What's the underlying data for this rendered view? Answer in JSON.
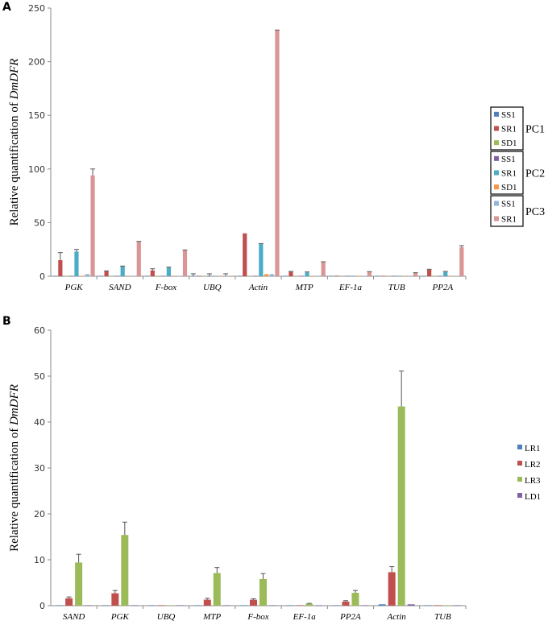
{
  "chart_data": [
    {
      "id": "A",
      "type": "bar",
      "panel_label": "A",
      "ylabel_prefix": "Relative quantification of ",
      "ylabel_gene": "DmDFR",
      "ylim": [
        0,
        250
      ],
      "yticks": [
        0,
        50,
        100,
        150,
        200,
        250
      ],
      "categories": [
        "PGK",
        "SAND",
        "F-box",
        "UBQ",
        "Actin",
        "MTP",
        "EF-1a",
        "TUB",
        "PP2A"
      ],
      "series": [
        {
          "name": "SS1",
          "group": "PC1",
          "color": "#4f81bd",
          "values": [
            0.3,
            0.3,
            0.3,
            0.3,
            0.3,
            0.3,
            0.3,
            0.3,
            0.3
          ],
          "errors": [
            0,
            0,
            0,
            2,
            0,
            0,
            0,
            0,
            0
          ]
        },
        {
          "name": "SR1",
          "group": "PC1",
          "color": "#c0504d",
          "values": [
            15,
            4.5,
            5.5,
            0.3,
            40,
            4,
            0.5,
            0.3,
            6
          ],
          "errors": [
            7,
            0.5,
            1.5,
            0,
            0,
            0.5,
            0,
            0,
            0.5
          ]
        },
        {
          "name": "SD1",
          "group": "PC1",
          "color": "#9bbb59",
          "values": [
            0.3,
            0.3,
            0.3,
            0.3,
            0.3,
            0.3,
            0.3,
            0.3,
            0.3
          ],
          "errors": [
            0,
            0,
            0,
            0,
            0,
            0,
            0,
            0,
            0
          ]
        },
        {
          "name": "SS1",
          "group": "PC2",
          "color": "#8064a2",
          "values": [
            0.3,
            0.3,
            0.3,
            0.3,
            0.3,
            0.3,
            0.3,
            0.3,
            0.3
          ],
          "errors": [
            0,
            0,
            0,
            2,
            0,
            0,
            0,
            0,
            0
          ]
        },
        {
          "name": "SR1",
          "group": "PC2",
          "color": "#4bacc6",
          "values": [
            23,
            9,
            8,
            0.3,
            30,
            3.5,
            0.5,
            0.3,
            4
          ],
          "errors": [
            2,
            0.5,
            0.5,
            0,
            0.5,
            0.5,
            0,
            0,
            0.5
          ]
        },
        {
          "name": "SD1",
          "group": "PC2",
          "color": "#f79646",
          "values": [
            0.3,
            0.3,
            0.3,
            0.3,
            2,
            0.3,
            0.3,
            0.3,
            0.3
          ],
          "errors": [
            0,
            0,
            0,
            0,
            0,
            0,
            0,
            0,
            0
          ]
        },
        {
          "name": "SS1",
          "group": "PC3",
          "color": "#95b3d7",
          "values": [
            2,
            0.3,
            0.3,
            0.3,
            2,
            0.3,
            0.3,
            0.3,
            0.3
          ],
          "errors": [
            0,
            0,
            0,
            2,
            0,
            0,
            0,
            0,
            0
          ]
        },
        {
          "name": "SR1",
          "group": "PC3",
          "color": "#d99694",
          "values": [
            94,
            32,
            24,
            0.3,
            229,
            13,
            4,
            3,
            27
          ],
          "errors": [
            6,
            0.5,
            0.5,
            0,
            0.5,
            0.5,
            0.3,
            0.3,
            1.5
          ]
        }
      ],
      "legend_groups": [
        "PC1",
        "PC2",
        "PC3"
      ],
      "legend_position": "right"
    },
    {
      "id": "B",
      "type": "bar",
      "panel_label": "B",
      "ylabel_prefix": "Relative quantification of ",
      "ylabel_gene": "DmDFR",
      "ylim": [
        0,
        60
      ],
      "yticks": [
        0,
        10,
        20,
        30,
        40,
        50,
        60
      ],
      "categories": [
        "SAND",
        "PGK",
        "UBQ",
        "MTP",
        "F-box",
        "EF-1a",
        "PP2A",
        "Actin",
        "TUB"
      ],
      "series": [
        {
          "name": "LR1",
          "color": "#4f81bd",
          "values": [
            0.1,
            0.1,
            0.05,
            0.1,
            0.1,
            0.05,
            0.1,
            0.3,
            0.05
          ],
          "errors": [
            0,
            0,
            0,
            0,
            0,
            0,
            0,
            0,
            0
          ]
        },
        {
          "name": "LR2",
          "color": "#c0504d",
          "values": [
            1.6,
            2.7,
            0.05,
            1.3,
            1.3,
            0.1,
            0.9,
            7.3,
            0.05
          ],
          "errors": [
            0.3,
            0.6,
            0,
            0.3,
            0.2,
            0,
            0.2,
            1.2,
            0
          ]
        },
        {
          "name": "LR3",
          "color": "#9bbb59",
          "values": [
            9.4,
            15.4,
            0.05,
            7.1,
            5.8,
            0.4,
            2.8,
            43.4,
            0.05
          ],
          "errors": [
            1.8,
            2.8,
            0,
            1.2,
            1.2,
            0.1,
            0.5,
            7.7,
            0
          ]
        },
        {
          "name": "LD1",
          "color": "#8064a2",
          "values": [
            0.1,
            0.1,
            0.05,
            0.05,
            0.05,
            0.05,
            0.05,
            0.3,
            0.05
          ],
          "errors": [
            0,
            0,
            0,
            0,
            0,
            0,
            0,
            0,
            0
          ]
        }
      ],
      "legend_position": "right"
    }
  ]
}
